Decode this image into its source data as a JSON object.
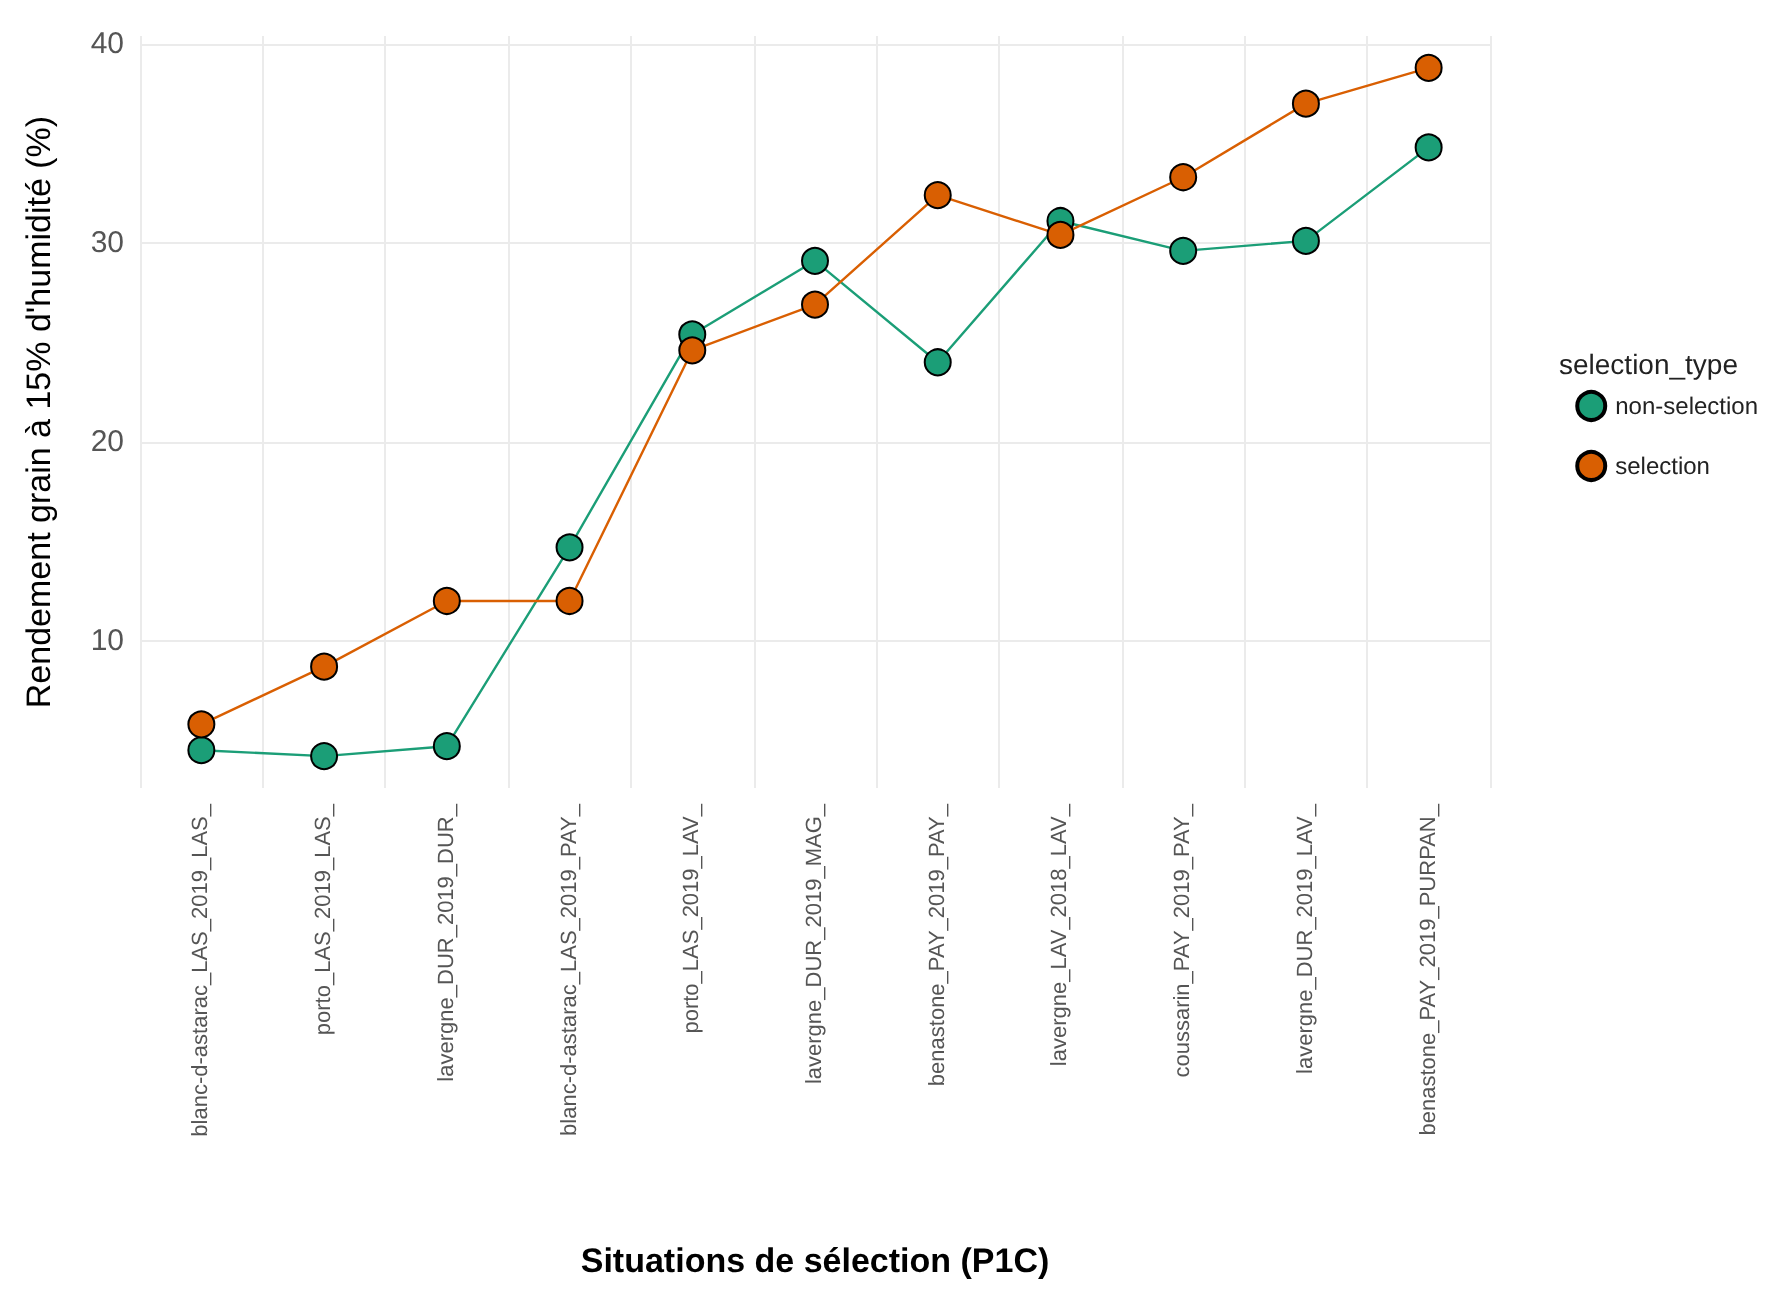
{
  "chart_data": {
    "type": "line",
    "xlabel": "Situations de sélection (P1C)",
    "ylabel": "Rendement grain à 15% d'humidité (%)",
    "legend_title": "selection_type",
    "categories": [
      "blanc-d-astarac_LAS_2019_LAS_",
      "porto_LAS_2019_LAS_",
      "lavergne_DUR_2019_DUR_",
      "blanc-d-astarac_LAS_2019_PAY_",
      "porto_LAS_2019_LAV_",
      "lavergne_DUR_2019_MAG_",
      "benastone_PAY_2019_PAY_",
      "lavergne_LAV_2018_LAV_",
      "coussarin_PAY_2019_PAY_",
      "lavergne_DUR_2019_LAV_",
      "benastone_PAY_2019_PURPAN_"
    ],
    "series": [
      {
        "name": "non-selection",
        "color": "#1b9e77",
        "values": [
          4.5,
          4.2,
          4.7,
          14.7,
          25.4,
          29.1,
          24.0,
          31.1,
          29.6,
          30.1,
          34.8
        ]
      },
      {
        "name": "selection",
        "color": "#d95f02",
        "values": [
          5.8,
          8.7,
          12.0,
          12.0,
          24.6,
          26.9,
          32.4,
          30.4,
          33.3,
          37.0,
          38.8
        ]
      }
    ],
    "ylim": [
      2.6,
      40.4
    ],
    "yticks": [
      10,
      20,
      30,
      40
    ],
    "grid": true,
    "legend": "right",
    "marker": "circle",
    "line_style": "solid"
  }
}
